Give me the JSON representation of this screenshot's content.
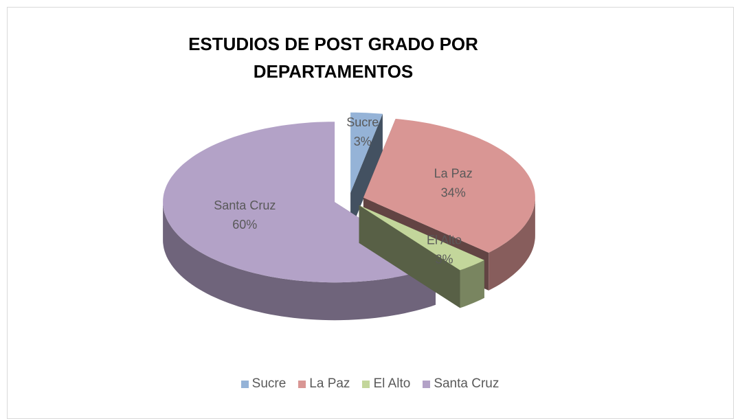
{
  "chart_data": {
    "type": "pie",
    "three_d": true,
    "title": "ESTUDIOS DE POST GRADO POR DEPARTAMENTOS",
    "categories": [
      "Sucre",
      "La Paz",
      "El Alto",
      "Santa Cruz"
    ],
    "values": [
      3,
      34,
      3,
      60
    ],
    "value_labels": [
      "3%",
      "34%",
      "3%",
      "60%"
    ],
    "colors": [
      "#95b3d7",
      "#d99694",
      "#c3d69b",
      "#b3a2c7"
    ],
    "legend": "bottom"
  }
}
